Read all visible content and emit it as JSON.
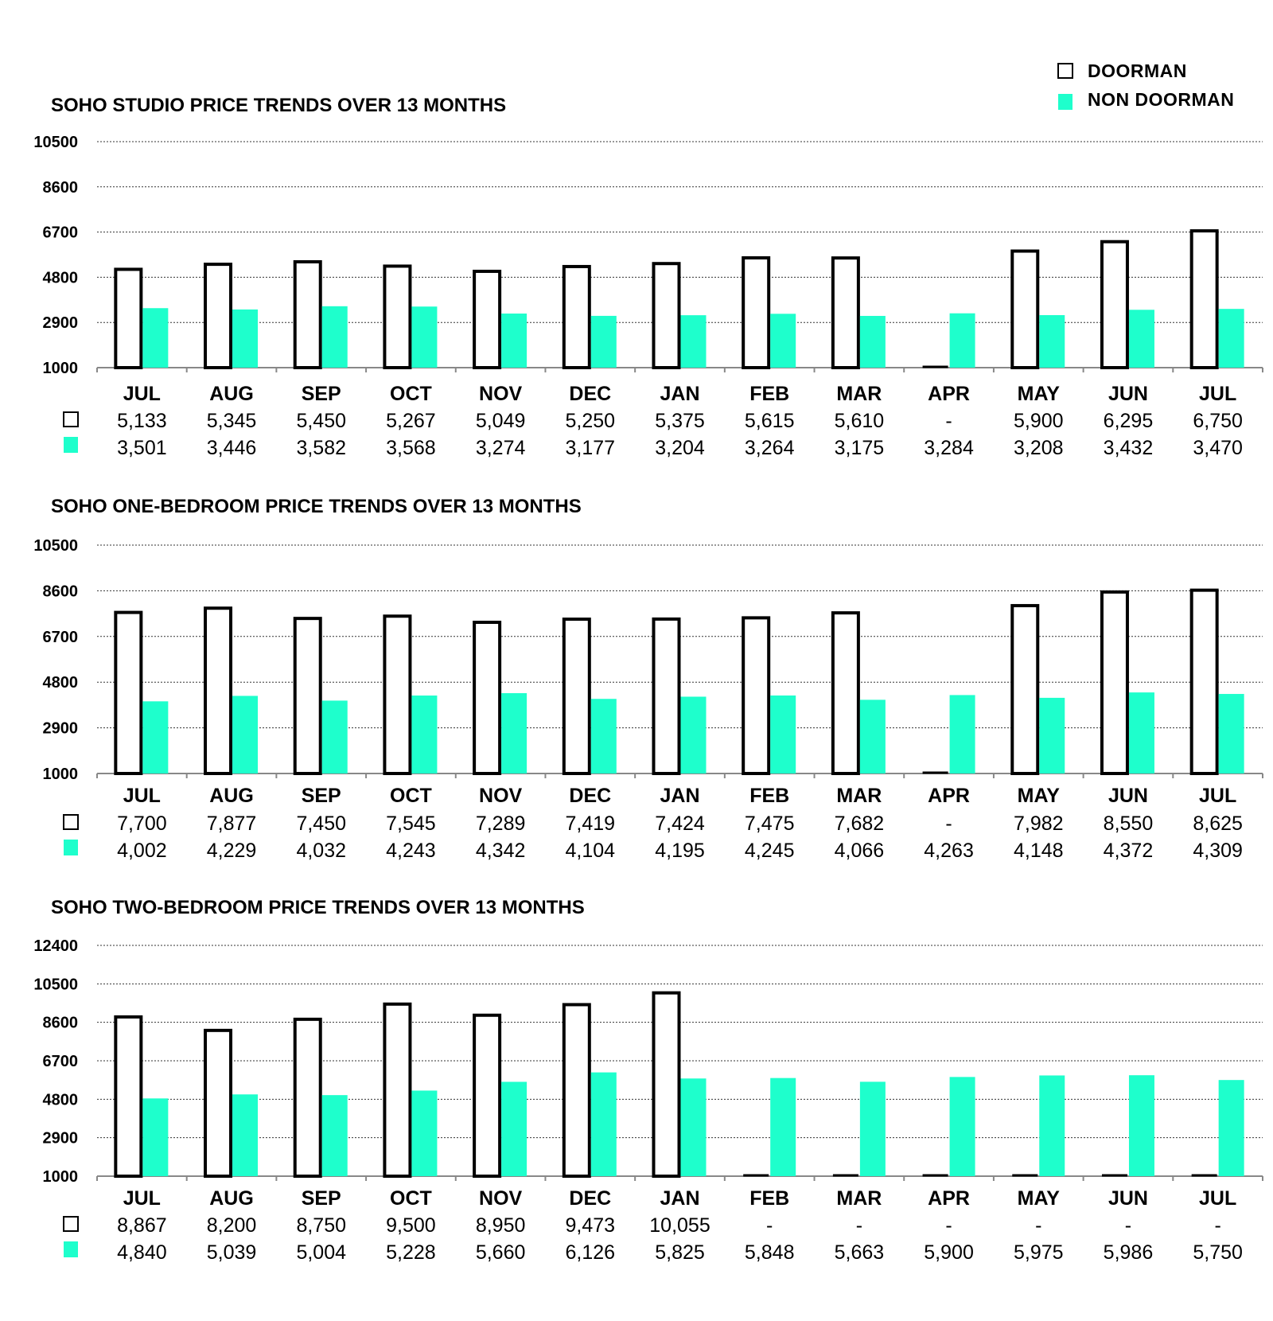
{
  "legend": {
    "doorman_label": "DOORMAN",
    "non_doorman_label": "NON DOORMAN"
  },
  "colors": {
    "doorman_fill": "#ffffff",
    "doorman_stroke": "#000000",
    "non_doorman": "#1effcc"
  },
  "chart_data": [
    {
      "type": "bar",
      "title": "SOHO STUDIO PRICE TRENDS OVER 13 MONTHS",
      "categories": [
        "JUL",
        "AUG",
        "SEP",
        "OCT",
        "NOV",
        "DEC",
        "JAN",
        "FEB",
        "MAR",
        "APR",
        "MAY",
        "JUN",
        "JUL"
      ],
      "yticks": [
        "1000",
        "2900",
        "4800",
        "6700",
        "8600",
        "10500"
      ],
      "ylim": [
        1000,
        10500
      ],
      "grid": true,
      "series": [
        {
          "name": "DOORMAN",
          "values": [
            5133,
            5345,
            5450,
            5267,
            5049,
            5250,
            5375,
            5615,
            5610,
            null,
            5900,
            6295,
            6750
          ],
          "labels": [
            "5,133",
            "5,345",
            "5,450",
            "5,267",
            "5,049",
            "5,250",
            "5,375",
            "5,615",
            "5,610",
            "-",
            "5,900",
            "6,295",
            "6,750"
          ]
        },
        {
          "name": "NON DOORMAN",
          "values": [
            3501,
            3446,
            3582,
            3568,
            3274,
            3177,
            3204,
            3264,
            3175,
            3284,
            3208,
            3432,
            3470
          ],
          "labels": [
            "3,501",
            "3,446",
            "3,582",
            "3,568",
            "3,274",
            "3,177",
            "3,204",
            "3,264",
            "3,175",
            "3,284",
            "3,208",
            "3,432",
            "3,470"
          ]
        }
      ]
    },
    {
      "type": "bar",
      "title": "SOHO ONE-BEDROOM PRICE TRENDS OVER 13 MONTHS",
      "categories": [
        "JUL",
        "AUG",
        "SEP",
        "OCT",
        "NOV",
        "DEC",
        "JAN",
        "FEB",
        "MAR",
        "APR",
        "MAY",
        "JUN",
        "JUL"
      ],
      "yticks": [
        "1000",
        "2900",
        "4800",
        "6700",
        "8600",
        "10500"
      ],
      "ylim": [
        1000,
        10500
      ],
      "grid": true,
      "series": [
        {
          "name": "DOORMAN",
          "values": [
            7700,
            7877,
            7450,
            7545,
            7289,
            7419,
            7424,
            7475,
            7682,
            null,
            7982,
            8550,
            8625
          ],
          "labels": [
            "7,700",
            "7,877",
            "7,450",
            "7,545",
            "7,289",
            "7,419",
            "7,424",
            "7,475",
            "7,682",
            "-",
            "7,982",
            "8,550",
            "8,625"
          ]
        },
        {
          "name": "NON DOORMAN",
          "values": [
            4002,
            4229,
            4032,
            4243,
            4342,
            4104,
            4195,
            4245,
            4066,
            4263,
            4148,
            4372,
            4309
          ],
          "labels": [
            "4,002",
            "4,229",
            "4,032",
            "4,243",
            "4,342",
            "4,104",
            "4,195",
            "4,245",
            "4,066",
            "4,263",
            "4,148",
            "4,372",
            "4,309"
          ]
        }
      ]
    },
    {
      "type": "bar",
      "title": "SOHO TWO-BEDROOM PRICE TRENDS OVER 13 MONTHS",
      "categories": [
        "JUL",
        "AUG",
        "SEP",
        "OCT",
        "NOV",
        "DEC",
        "JAN",
        "FEB",
        "MAR",
        "APR",
        "MAY",
        "JUN",
        "JUL"
      ],
      "yticks": [
        "1000",
        "2900",
        "4800",
        "6700",
        "8600",
        "10500",
        "12400"
      ],
      "ylim": [
        1000,
        12400
      ],
      "grid": true,
      "series": [
        {
          "name": "DOORMAN",
          "values": [
            8867,
            8200,
            8750,
            9500,
            8950,
            9473,
            10055,
            null,
            null,
            null,
            null,
            null,
            null
          ],
          "labels": [
            "8,867",
            "8,200",
            "8,750",
            "9,500",
            "8,950",
            "9,473",
            "10,055",
            "-",
            "-",
            "-",
            "-",
            "-",
            "-"
          ]
        },
        {
          "name": "NON DOORMAN",
          "values": [
            4840,
            5039,
            5004,
            5228,
            5660,
            6126,
            5825,
            5848,
            5663,
            5900,
            5975,
            5986,
            5750
          ],
          "labels": [
            "4,840",
            "5,039",
            "5,004",
            "5,228",
            "5,660",
            "6,126",
            "5,825",
            "5,848",
            "5,663",
            "5,900",
            "5,975",
            "5,986",
            "5,750"
          ]
        }
      ]
    }
  ]
}
